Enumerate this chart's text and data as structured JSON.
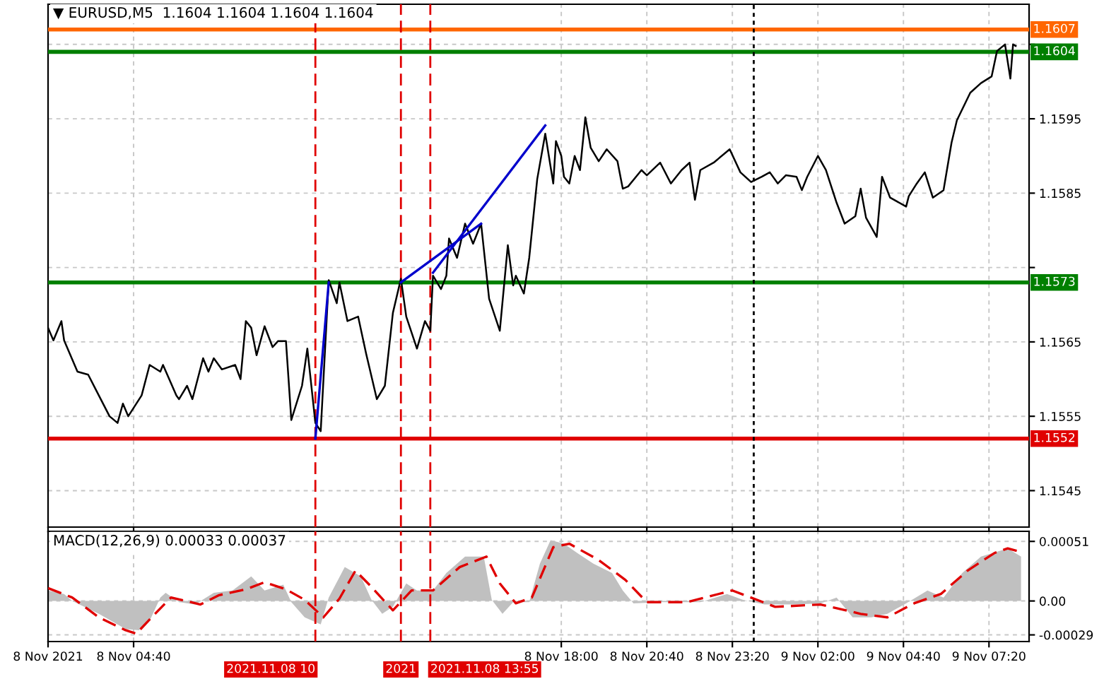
{
  "chart_data": [
    {
      "type": "line",
      "title": "▼ EURUSD,M5  1.1604 1.1604 1.1604 1.1604",
      "xlim": [
        "2021-11-08T02:00",
        "2021-11-09T08:35"
      ],
      "ylim": [
        1.15401,
        1.16104
      ],
      "tick_labels": "y",
      "grid": true,
      "xticks": [
        {
          "value": "2021-11-08T02:00",
          "label": null
        },
        {
          "value": "2021-11-08T04:40",
          "label": null
        },
        {
          "value": "2021-11-08T18:00",
          "label": null
        },
        {
          "value": "2021-11-08T20:40",
          "label": null
        },
        {
          "value": "2021-11-08T23:20",
          "label": null
        },
        {
          "value": "2021-11-09T02:00",
          "label": null
        },
        {
          "value": "2021-11-09T04:40",
          "label": null
        },
        {
          "value": "2021-11-09T07:20",
          "label": null
        }
      ],
      "yticks": [
        1.1545,
        1.1555,
        1.1565,
        {
          "value": 1.1575,
          "label": null
        },
        1.1585,
        1.1595,
        {
          "value": 1.1605,
          "label": null
        }
      ],
      "ref_lines": [
        {
          "axis": "y",
          "value": 1.1607,
          "label": "1.1607",
          "color": "#ff6600"
        },
        {
          "axis": "y",
          "value": 1.1604,
          "label": "1.1604",
          "color": "#007f00"
        },
        {
          "axis": "y",
          "value": 1.1573,
          "label": "1.1573",
          "color": "#008000"
        },
        {
          "axis": "y",
          "value": 1.1552,
          "label": "1.1552",
          "color": "#e00000"
        },
        {
          "axis": "x",
          "value": "2021-11-08T10:20",
          "color": "#e00000",
          "line_style": "dashed"
        },
        {
          "axis": "x",
          "value": "2021-11-08T13:00",
          "color": "#e00000",
          "line_style": "dashed"
        },
        {
          "axis": "x",
          "value": "2021-11-08T13:55",
          "color": "#e00000",
          "line_style": "dashed"
        },
        {
          "axis": "x",
          "value": "2021-11-09T00:00",
          "color": "#000000",
          "line_style": "dotted"
        }
      ],
      "series": [
        {
          "color": "#000000",
          "x": [
            "2021-11-08T02:00",
            "2021-11-08T02:10",
            "2021-11-08T02:25",
            "2021-11-08T02:30",
            "2021-11-08T02:55",
            "2021-11-08T03:15",
            "2021-11-08T03:30",
            "2021-11-08T03:55",
            "2021-11-08T04:10",
            "2021-11-08T04:20",
            "2021-11-08T04:30",
            "2021-11-08T04:55",
            "2021-11-08T05:10",
            "2021-11-08T05:30",
            "2021-11-08T05:35",
            "2021-11-08T06:00",
            "2021-11-08T06:05",
            "2021-11-08T06:20",
            "2021-11-08T06:30",
            "2021-11-08T06:50",
            "2021-11-08T07:00",
            "2021-11-08T07:10",
            "2021-11-08T07:25",
            "2021-11-08T07:50",
            "2021-11-08T08:00",
            "2021-11-08T08:10",
            "2021-11-08T08:20",
            "2021-11-08T08:30",
            "2021-11-08T08:45",
            "2021-11-08T09:00",
            "2021-11-08T09:10",
            "2021-11-08T09:25",
            "2021-11-08T09:35",
            "2021-11-08T09:55",
            "2021-11-08T10:05",
            "2021-11-08T10:20",
            "2021-11-08T10:30",
            "2021-11-08T10:45",
            "2021-11-08T11:00",
            "2021-11-08T11:05",
            "2021-11-08T11:20",
            "2021-11-08T11:40",
            "2021-11-08T11:55",
            "2021-11-08T12:15",
            "2021-11-08T12:30",
            "2021-11-08T12:45",
            "2021-11-08T13:00",
            "2021-11-08T13:10",
            "2021-11-08T13:30",
            "2021-11-08T13:45",
            "2021-11-08T13:55",
            "2021-11-08T14:00",
            "2021-11-08T14:15",
            "2021-11-08T14:25",
            "2021-11-08T14:30",
            "2021-11-08T14:45",
            "2021-11-08T15:00",
            "2021-11-08T15:15",
            "2021-11-08T15:30",
            "2021-11-08T15:45",
            "2021-11-08T16:05",
            "2021-11-08T16:20",
            "2021-11-08T16:30",
            "2021-11-08T16:35",
            "2021-11-08T16:50",
            "2021-11-08T17:00",
            "2021-11-08T17:15",
            "2021-11-08T17:30",
            "2021-11-08T17:45",
            "2021-11-08T17:50",
            "2021-11-08T18:00",
            "2021-11-08T18:05",
            "2021-11-08T18:15",
            "2021-11-08T18:25",
            "2021-11-08T18:35",
            "2021-11-08T18:45",
            "2021-11-08T18:55",
            "2021-11-08T19:10",
            "2021-11-08T19:25",
            "2021-11-08T19:45",
            "2021-11-08T19:55",
            "2021-11-08T20:05",
            "2021-11-08T20:30",
            "2021-11-08T20:40",
            "2021-11-08T21:05",
            "2021-11-08T21:25",
            "2021-11-08T21:45",
            "2021-11-08T22:00",
            "2021-11-08T22:10",
            "2021-11-08T22:20",
            "2021-11-08T22:45",
            "2021-11-08T23:15",
            "2021-11-08T23:35",
            "2021-11-08T23:55",
            "2021-11-09T00:15",
            "2021-11-09T00:30",
            "2021-11-09T00:45",
            "2021-11-09T01:00",
            "2021-11-09T01:20",
            "2021-11-09T01:30",
            "2021-11-09T01:40",
            "2021-11-09T02:00",
            "2021-11-09T02:15",
            "2021-11-09T02:35",
            "2021-11-09T02:50",
            "2021-11-09T03:10",
            "2021-11-09T03:20",
            "2021-11-09T03:30",
            "2021-11-09T03:50",
            "2021-11-09T04:00",
            "2021-11-09T04:15",
            "2021-11-09T04:45",
            "2021-11-09T04:50",
            "2021-11-09T05:05",
            "2021-11-09T05:20",
            "2021-11-09T05:35",
            "2021-11-09T05:55",
            "2021-11-09T06:10",
            "2021-11-09T06:20",
            "2021-11-09T06:45",
            "2021-11-09T07:05",
            "2021-11-09T07:25",
            "2021-11-09T07:35",
            "2021-11-09T07:50",
            "2021-11-09T08:00",
            "2021-11-09T08:05",
            "2021-11-09T08:10"
          ],
          "values": [
            1.15669,
            1.15652,
            1.15678,
            1.15652,
            1.1561,
            1.15606,
            1.15585,
            1.1555,
            1.15541,
            1.15567,
            1.1555,
            1.15578,
            1.15619,
            1.1561,
            1.15619,
            1.15578,
            1.15573,
            1.15591,
            1.15573,
            1.15628,
            1.1561,
            1.15628,
            1.15613,
            1.15619,
            1.156,
            1.15678,
            1.15669,
            1.15632,
            1.15671,
            1.15643,
            1.15651,
            1.15651,
            1.15545,
            1.15591,
            1.15641,
            1.15541,
            1.1553,
            1.15733,
            1.15702,
            1.1573,
            1.15678,
            1.15684,
            1.15634,
            1.15573,
            1.15591,
            1.15689,
            1.15735,
            1.15684,
            1.15641,
            1.15678,
            1.15665,
            1.15739,
            1.15721,
            1.15739,
            1.15789,
            1.15763,
            1.15809,
            1.15782,
            1.15809,
            1.15708,
            1.15665,
            1.1578,
            1.15726,
            1.15739,
            1.15715,
            1.15763,
            1.15869,
            1.1593,
            1.15863,
            1.1592,
            1.159,
            1.15872,
            1.15863,
            1.159,
            1.15881,
            1.15952,
            1.15911,
            1.15893,
            1.15909,
            1.15893,
            1.15856,
            1.15859,
            1.15881,
            1.15874,
            1.15891,
            1.15863,
            1.15881,
            1.15891,
            1.15841,
            1.15881,
            1.15891,
            1.15909,
            1.15878,
            1.15865,
            1.15872,
            1.15878,
            1.15863,
            1.15874,
            1.15872,
            1.15854,
            1.15872,
            1.159,
            1.15881,
            1.15837,
            1.15809,
            1.15819,
            1.15856,
            1.15817,
            1.15791,
            1.15872,
            1.15844,
            1.15832,
            1.15846,
            1.15863,
            1.15878,
            1.15844,
            1.15854,
            1.15918,
            1.15948,
            1.15985,
            1.15998,
            1.16007,
            1.16041,
            1.1605,
            1.16004,
            1.1605,
            1.16048
          ]
        },
        {
          "color": "#0000cc",
          "x": [
            "2021-11-08T10:20",
            "2021-11-08T10:45"
          ],
          "values": [
            1.1552,
            1.1573
          ]
        },
        {
          "color": "#0000cc",
          "x": [
            "2021-11-08T13:00",
            "2021-11-08T15:30"
          ],
          "values": [
            1.1573,
            1.15809
          ]
        },
        {
          "color": "#0000cc",
          "x": [
            "2021-11-08T14:00",
            "2021-11-08T17:30"
          ],
          "values": [
            1.15743,
            1.15941
          ]
        }
      ]
    },
    {
      "type": "area",
      "title": "MACD(12,26,9) 0.00033 0.00037",
      "xlim": [
        "2021-11-08T02:00",
        "2021-11-09T08:35"
      ],
      "ylim": [
        -0.000347,
        0.000596
      ],
      "grid": true,
      "xticks": [
        {
          "value": "2021-11-08T02:00",
          "label": "8 Nov 2021"
        },
        {
          "value": "2021-11-08T04:40",
          "label": "8 Nov 04:40"
        },
        {
          "value": "2021-11-08T18:00",
          "label": "8 Nov 18:00"
        },
        {
          "value": "2021-11-08T20:40",
          "label": "8 Nov 20:40"
        },
        {
          "value": "2021-11-08T23:20",
          "label": "8 Nov 23:20"
        },
        {
          "value": "2021-11-09T02:00",
          "label": "9 Nov 02:00"
        },
        {
          "value": "2021-11-09T04:40",
          "label": "9 Nov 04:40"
        },
        {
          "value": "2021-11-09T07:20",
          "label": "9 Nov 07:20"
        }
      ],
      "yticks": [
        {
          "value": -0.00029,
          "label": "-0.00029"
        },
        {
          "value": 0,
          "label": "0.00"
        },
        0.00051
      ],
      "ref_lines": [
        {
          "axis": "x",
          "value": "2021-11-08T10:20",
          "label": "2021.11.08 10",
          "color": "#e00000",
          "line_style": "dashed"
        },
        {
          "axis": "x",
          "value": "2021-11-08T13:00",
          "label": "2021",
          "color": "#e00000",
          "line_style": "dashed"
        },
        {
          "axis": "x",
          "value": "2021-11-08T13:55",
          "label": "2021.11.08 13:55",
          "color": "#e00000",
          "line_style": "dashed"
        },
        {
          "axis": "x",
          "value": "2021-11-09T00:00",
          "color": "#000000",
          "line_style": "dotted"
        }
      ],
      "series": [
        {
          "color": "#c0c0c0",
          "x": [
            "2021-11-08T02:00",
            "2021-11-08T02:30",
            "2021-11-08T02:45",
            "2021-11-08T03:35",
            "2021-11-08T04:25",
            "2021-11-08T04:50",
            "2021-11-08T05:10",
            "2021-11-08T05:30",
            "2021-11-08T05:40",
            "2021-11-08T06:05",
            "2021-11-08T06:35",
            "2021-11-08T07:10",
            "2021-11-08T07:45",
            "2021-11-08T08:20",
            "2021-11-08T08:45",
            "2021-11-08T09:20",
            "2021-11-08T09:35",
            "2021-11-08T10:00",
            "2021-11-08T10:30",
            "2021-11-08T10:45",
            "2021-11-08T11:15",
            "2021-11-08T11:45",
            "2021-11-08T12:05",
            "2021-11-08T12:25",
            "2021-11-08T12:45",
            "2021-11-08T13:10",
            "2021-11-08T13:30",
            "2021-11-08T14:00",
            "2021-11-08T14:25",
            "2021-11-08T15:00",
            "2021-11-08T15:35",
            "2021-11-08T15:50",
            "2021-11-08T16:10",
            "2021-11-08T16:30",
            "2021-11-08T17:00",
            "2021-11-08T17:20",
            "2021-11-08T17:40",
            "2021-11-08T18:05",
            "2021-11-08T18:30",
            "2021-11-08T19:00",
            "2021-11-08T19:35",
            "2021-11-08T19:55",
            "2021-11-08T20:15",
            "2021-11-08T21:05",
            "2021-11-08T22:20",
            "2021-11-08T23:10",
            "2021-11-08T23:40",
            "2021-11-09T00:20",
            "2021-11-09T01:15",
            "2021-11-09T02:05",
            "2021-11-09T02:35",
            "2021-11-09T03:05",
            "2021-11-09T03:40",
            "2021-11-09T04:10",
            "2021-11-09T04:45",
            "2021-11-09T05:25",
            "2021-11-09T05:55",
            "2021-11-09T06:30",
            "2021-11-09T07:05",
            "2021-11-09T07:55",
            "2021-11-09T08:20"
          ],
          "values": [
            9e-05,
            6e-05,
            0,
            -0.00011,
            -0.00024,
            -0.00025,
            -0.00017,
            3e-05,
            7e-05,
            -1e-05,
            -3e-05,
            7e-05,
            9e-05,
            0.00021,
            9e-05,
            0.00014,
            -1e-05,
            -0.00014,
            -0.0002,
            3e-05,
            0.00029,
            0.00021,
            1e-05,
            -0.00011,
            -5e-05,
            0.00015,
            9e-05,
            9e-05,
            0.00024,
            0.00038,
            0.00038,
            1e-05,
            -0.00011,
            -1e-05,
            -1e-05,
            0.00032,
            0.00052,
            0.00049,
            0.00041,
            0.00032,
            0.00024,
            9e-05,
            -2e-05,
            -1e-05,
            -1e-05,
            6e-05,
            1e-05,
            -3e-05,
            -3e-05,
            -2e-05,
            3e-05,
            -0.00014,
            -0.00014,
            -0.00011,
            -2e-05,
            9e-05,
            3e-05,
            0.00024,
            0.00038,
            0.00045,
            0.00038
          ]
        },
        {
          "type": "line",
          "line_style": "dashed",
          "color": "#e00000",
          "x": [
            "2021-11-08T02:00",
            "2021-11-08T02:45",
            "2021-11-08T03:35",
            "2021-11-08T04:25",
            "2021-11-08T04:45",
            "2021-11-08T05:20",
            "2021-11-08T05:50",
            "2021-11-08T06:45",
            "2021-11-08T07:20",
            "2021-11-08T08:10",
            "2021-11-08T08:45",
            "2021-11-08T09:25",
            "2021-11-08T10:00",
            "2021-11-08T10:35",
            "2021-11-08T11:05",
            "2021-11-08T11:35",
            "2021-11-08T12:05",
            "2021-11-08T12:45",
            "2021-11-08T13:20",
            "2021-11-08T14:00",
            "2021-11-08T14:50",
            "2021-11-08T15:40",
            "2021-11-08T16:05",
            "2021-11-08T16:35",
            "2021-11-08T17:05",
            "2021-11-08T17:45",
            "2021-11-08T18:15",
            "2021-11-08T19:10",
            "2021-11-08T20:00",
            "2021-11-08T20:40",
            "2021-11-08T21:55",
            "2021-11-08T23:20",
            "2021-11-09T00:40",
            "2021-11-09T02:05",
            "2021-11-09T03:20",
            "2021-11-09T04:10",
            "2021-11-09T05:00",
            "2021-11-09T05:50",
            "2021-11-09T06:40",
            "2021-11-09T07:30",
            "2021-11-09T07:55",
            "2021-11-09T08:20"
          ],
          "values": [
            0.00011,
            3e-05,
            -0.00014,
            -0.00025,
            -0.00028,
            -0.00011,
            3e-05,
            -3e-05,
            5e-05,
            0.0001,
            0.00016,
            0.0001,
            1e-05,
            -0.00014,
            2e-05,
            0.00026,
            0.00012,
            -8e-05,
            9e-05,
            9e-05,
            0.00029,
            0.00038,
            0.00015,
            -2e-05,
            3e-05,
            0.00046,
            0.00049,
            0.00035,
            0.00018,
            -1e-05,
            -1e-05,
            9e-05,
            -5e-05,
            -3e-05,
            -0.00011,
            -0.00014,
            -2e-05,
            6e-05,
            0.00026,
            0.00041,
            0.00045,
            0.00042
          ]
        }
      ]
    }
  ]
}
